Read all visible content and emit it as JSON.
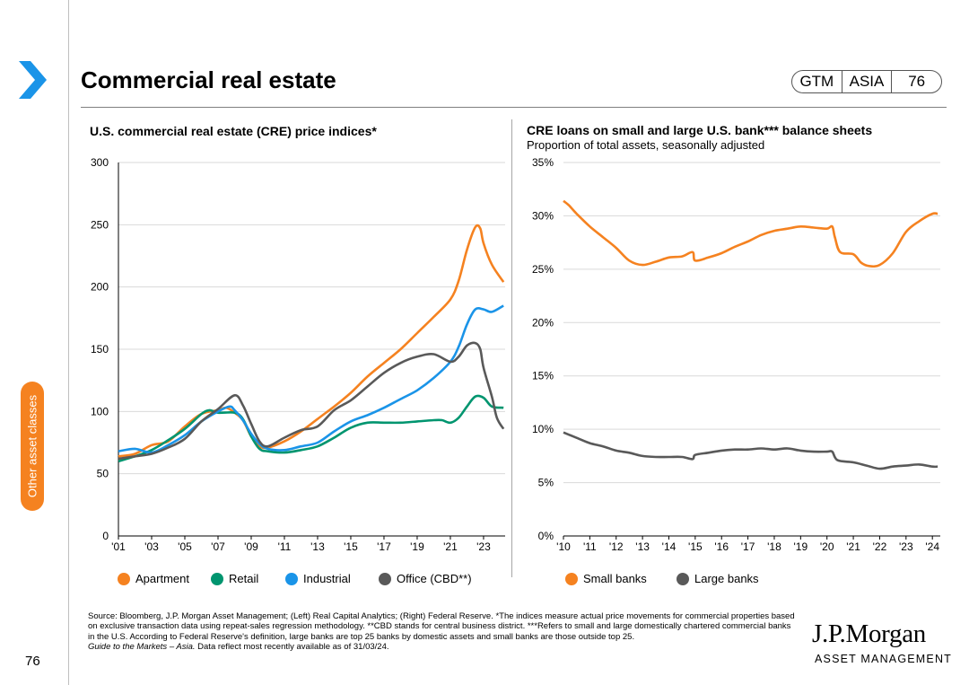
{
  "header": {
    "title": "Commercial real estate",
    "badge": [
      "GTM",
      "ASIA",
      "76"
    ]
  },
  "side_tab": {
    "label": "Other asset classes"
  },
  "page_number": "76",
  "footer": {
    "source": "Source: Bloomberg, J.P. Morgan Asset Management; (Left) Real Capital Analytics; (Right) Federal Reserve. *The indices measure actual price movements for commercial properties based on exclusive transaction data using repeat-sales regression methodology. **CBD stands for central business district. ***Refers to small and large domestically chartered commercial banks in the U.S. According to Federal Reserve's definition, large banks are top 25 banks by domestic assets and small banks are those outside top 25.",
    "guide": "Guide to the Markets – Asia.",
    "data_note": " Data reflect most recently available as of 31/03/24."
  },
  "logo": {
    "name": "J.P.Morgan",
    "sub": "ASSET MANAGEMENT"
  },
  "colors": {
    "orange": "#f58220",
    "green": "#00956f",
    "blue": "#1a94e8",
    "gray": "#595959",
    "grid": "#d9d9d9"
  },
  "chart_data": [
    {
      "type": "line",
      "title": "U.S. commercial real estate (CRE) price indices*",
      "xlim": [
        2001,
        2024.3
      ],
      "ylim": [
        0,
        300
      ],
      "yticks": [
        0,
        50,
        100,
        150,
        200,
        250,
        300
      ],
      "ytick_labels": [
        "0",
        "50",
        "100",
        "150",
        "200",
        "250",
        "300"
      ],
      "xticks": [
        2001,
        2003,
        2005,
        2007,
        2009,
        2011,
        2013,
        2015,
        2017,
        2019,
        2021,
        2023
      ],
      "xtick_labels": [
        "'01",
        "'03",
        "'05",
        "'07",
        "'09",
        "'11",
        "'13",
        "'15",
        "'17",
        "'19",
        "'21",
        "'23"
      ],
      "legend": "bottom",
      "series": [
        {
          "name": "Apartment",
          "color": "#f58220",
          "x": [
            2001,
            2002,
            2003,
            2004,
            2005,
            2006,
            2007,
            2007.5,
            2008,
            2008.5,
            2009,
            2009.5,
            2010,
            2011,
            2012,
            2013,
            2014,
            2015,
            2016,
            2017,
            2018,
            2019,
            2020,
            2021,
            2021.5,
            2022,
            2022.5,
            2022.8,
            2023,
            2023.5,
            2024.2
          ],
          "y": [
            64,
            66,
            73,
            76,
            88,
            98,
            101,
            103,
            99,
            93,
            80,
            72,
            71,
            76,
            84,
            94,
            104,
            115,
            128,
            139,
            150,
            163,
            176,
            190,
            205,
            230,
            248,
            247,
            235,
            218,
            204
          ]
        },
        {
          "name": "Retail",
          "color": "#00956f",
          "x": [
            2001,
            2002,
            2003,
            2004,
            2005,
            2006,
            2006.5,
            2007,
            2008,
            2008.5,
            2009,
            2009.5,
            2010,
            2011,
            2012,
            2013,
            2014,
            2015,
            2016,
            2017,
            2018,
            2019,
            2020,
            2020.5,
            2021,
            2021.5,
            2022,
            2022.5,
            2023,
            2023.5,
            2024.2
          ],
          "y": [
            60,
            64,
            69,
            77,
            86,
            98,
            101,
            99,
            99,
            94,
            80,
            70,
            68,
            67,
            69,
            72,
            79,
            87,
            91,
            91,
            91,
            92,
            93,
            93,
            91,
            95,
            104,
            112,
            111,
            104,
            103
          ]
        },
        {
          "name": "Industrial",
          "color": "#1a94e8",
          "x": [
            2001,
            2002,
            2003,
            2004,
            2005,
            2006,
            2007,
            2007.7,
            2008,
            2008.5,
            2009,
            2009.5,
            2010,
            2011,
            2012,
            2013,
            2014,
            2015,
            2016,
            2017,
            2018,
            2019,
            2020,
            2021,
            2021.5,
            2022,
            2022.5,
            2023,
            2023.5,
            2024.2
          ],
          "y": [
            68,
            70,
            67,
            73,
            81,
            92,
            100,
            104,
            101,
            93,
            82,
            74,
            70,
            69,
            72,
            75,
            84,
            92,
            97,
            103,
            110,
            117,
            127,
            140,
            152,
            170,
            182,
            182,
            180,
            185
          ]
        },
        {
          "name": "Office (CBD**)",
          "color": "#595959",
          "x": [
            2001,
            2002,
            2003,
            2004,
            2005,
            2006,
            2007,
            2008,
            2008.5,
            2009,
            2009.5,
            2010,
            2011,
            2012,
            2013,
            2014,
            2015,
            2016,
            2017,
            2018,
            2019,
            2020,
            2021,
            2021.5,
            2022,
            2022.5,
            2022.8,
            2023,
            2023.5,
            2023.8,
            2024.2
          ],
          "y": [
            62,
            64,
            66,
            71,
            78,
            92,
            102,
            113,
            105,
            90,
            76,
            72,
            79,
            85,
            88,
            101,
            109,
            120,
            131,
            139,
            144,
            146,
            140,
            144,
            153,
            155,
            150,
            135,
            112,
            95,
            86
          ]
        }
      ]
    },
    {
      "type": "line",
      "title": "CRE loans on small and large U.S. bank*** balance sheets",
      "subtitle": "Proportion of total assets, seasonally adjusted",
      "xlim": [
        2010,
        2024.3
      ],
      "ylim": [
        0,
        35
      ],
      "yticks": [
        0,
        5,
        10,
        15,
        20,
        25,
        30,
        35
      ],
      "ytick_labels": [
        "0%",
        "5%",
        "10%",
        "15%",
        "20%",
        "25%",
        "30%",
        "35%"
      ],
      "xticks": [
        2010,
        2011,
        2012,
        2013,
        2014,
        2015,
        2016,
        2017,
        2018,
        2019,
        2020,
        2021,
        2022,
        2023,
        2024
      ],
      "xtick_labels": [
        "'10",
        "'11",
        "'12",
        "'13",
        "'14",
        "'15",
        "'16",
        "'17",
        "'18",
        "'19",
        "'20",
        "'21",
        "'22",
        "'23",
        "'24"
      ],
      "legend": "bottom",
      "series": [
        {
          "name": "Small banks",
          "color": "#f58220",
          "x": [
            2010,
            2010.2,
            2010.5,
            2011,
            2011.5,
            2012,
            2012.5,
            2013,
            2013.5,
            2014,
            2014.5,
            2014.9,
            2015,
            2015.5,
            2016,
            2016.5,
            2017,
            2017.5,
            2018,
            2018.5,
            2019,
            2019.5,
            2020,
            2020.2,
            2020.3,
            2020.5,
            2021,
            2021.3,
            2021.6,
            2022,
            2022.5,
            2023,
            2023.5,
            2024,
            2024.2
          ],
          "y": [
            31.4,
            31.0,
            30.2,
            29.0,
            28.0,
            27.0,
            25.8,
            25.4,
            25.7,
            26.1,
            26.2,
            26.6,
            25.8,
            26.1,
            26.5,
            27.1,
            27.6,
            28.2,
            28.6,
            28.8,
            29.0,
            28.9,
            28.8,
            29.0,
            28.0,
            26.6,
            26.4,
            25.6,
            25.3,
            25.4,
            26.5,
            28.5,
            29.5,
            30.2,
            30.2
          ]
        },
        {
          "name": "Large banks",
          "color": "#595959",
          "x": [
            2010,
            2010.5,
            2011,
            2011.5,
            2012,
            2012.5,
            2013,
            2013.5,
            2014,
            2014.5,
            2014.9,
            2015,
            2015.5,
            2016,
            2016.5,
            2017,
            2017.5,
            2018,
            2018.5,
            2019,
            2019.5,
            2020,
            2020.2,
            2020.4,
            2021,
            2021.5,
            2022,
            2022.5,
            2023,
            2023.5,
            2024,
            2024.2
          ],
          "y": [
            9.7,
            9.2,
            8.7,
            8.4,
            8.0,
            7.8,
            7.5,
            7.4,
            7.4,
            7.4,
            7.2,
            7.6,
            7.8,
            8.0,
            8.1,
            8.1,
            8.2,
            8.1,
            8.2,
            8.0,
            7.9,
            7.9,
            7.9,
            7.1,
            6.9,
            6.6,
            6.3,
            6.5,
            6.6,
            6.7,
            6.5,
            6.5
          ]
        }
      ]
    }
  ]
}
